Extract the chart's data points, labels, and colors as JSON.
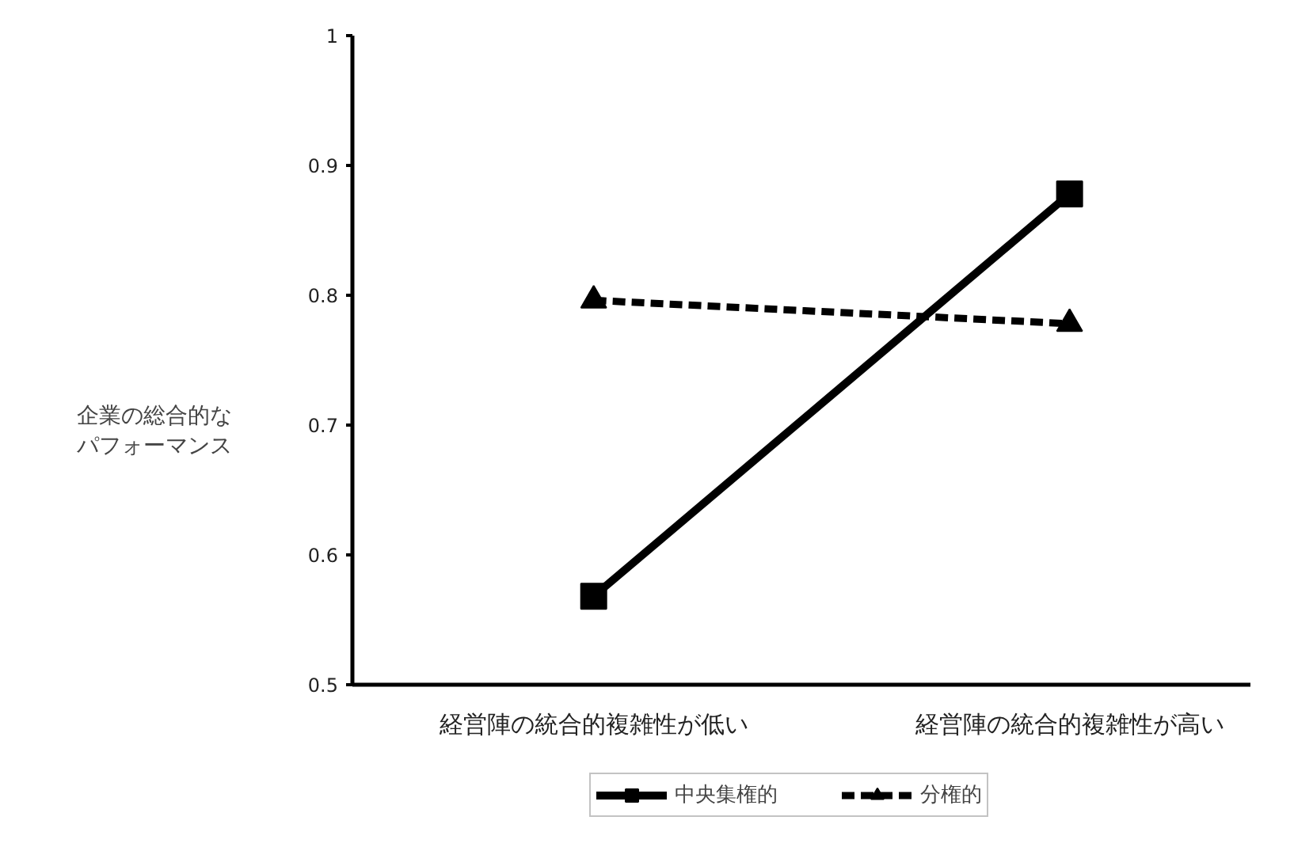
{
  "chart_data": {
    "type": "line",
    "ylabel": "企業の総合的なパフォーマンス",
    "categories": [
      "経営陣の統合的複雑性が低い",
      "経営陣の統合的複雑性が高い"
    ],
    "series": [
      {
        "name": "中央集権的",
        "color": "#000000",
        "values": [
          0.568,
          0.878
        ],
        "marker": "square",
        "line_style": "solid"
      },
      {
        "name": "分権的",
        "color": "#000000",
        "values": [
          0.796,
          0.778
        ],
        "marker": "triangle",
        "line_style": "dashed"
      }
    ],
    "ylim": [
      0.5,
      1
    ],
    "yticks": [
      0.5,
      0.6,
      0.7,
      0.8,
      0.9,
      1
    ],
    "grid": false,
    "legend": "bottom"
  }
}
